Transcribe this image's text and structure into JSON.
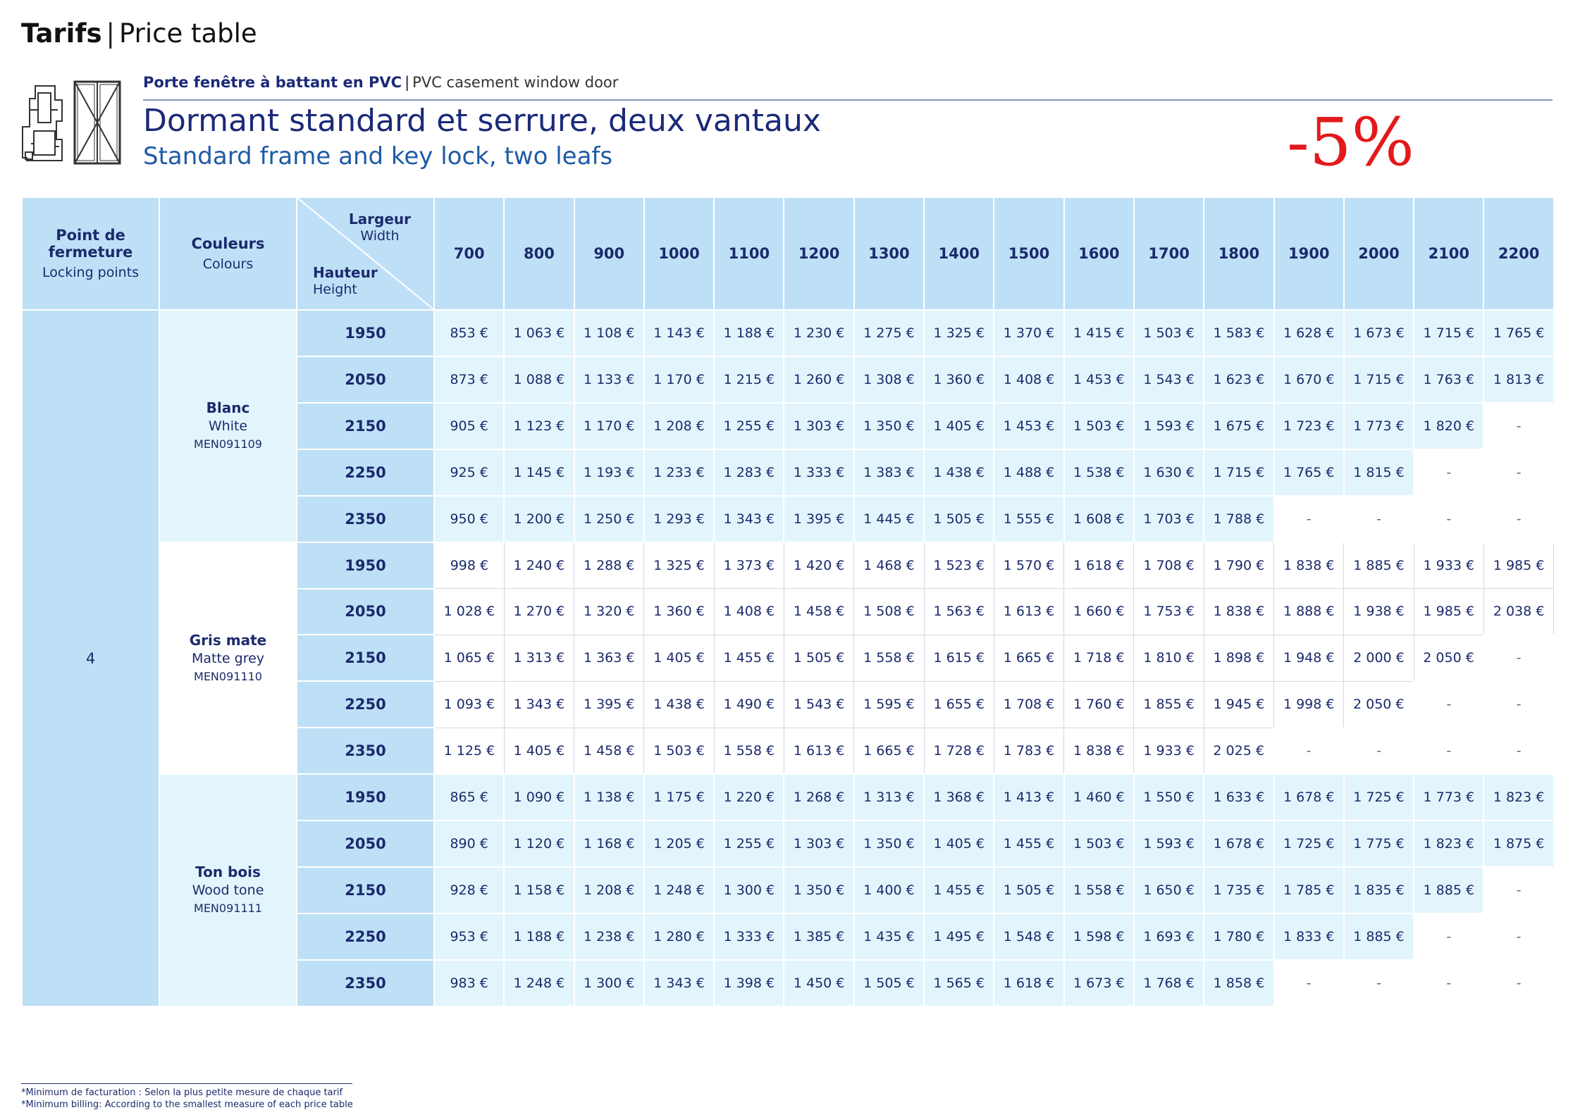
{
  "page": {
    "title_fr": "Tarifs",
    "title_sep": "|",
    "title_en": "Price table"
  },
  "product": {
    "type_fr": "Porte fenêtre à battant en PVC",
    "type_sep": "|",
    "type_en": "PVC casement window door",
    "heading_fr": "Dormant standard et serrure, deux vantaux",
    "heading_en": "Standard frame and key lock, two leafs",
    "discount": "-5%",
    "icon": "window-door-profile-icon"
  },
  "table": {
    "headers": {
      "locking_fr": "Point de fermeture",
      "locking_en": "Locking points",
      "colours_fr": "Couleurs",
      "colours_en": "Colours",
      "width_fr": "Largeur",
      "width_en": "Width",
      "height_fr": "Hauteur",
      "height_en": "Height"
    },
    "widths": [
      "700",
      "800",
      "900",
      "1000",
      "1100",
      "1200",
      "1300",
      "1400",
      "1500",
      "1600",
      "1700",
      "1800",
      "1900",
      "2000",
      "2100",
      "2200"
    ],
    "locking_points": "4",
    "colours": [
      {
        "name_fr": "Blanc",
        "name_en": "White",
        "ref": "MEN091109",
        "rows": [
          {
            "height": "1950",
            "prices": [
              "853 €",
              "1 063 €",
              "1 108 €",
              "1 143 €",
              "1 188 €",
              "1 230 €",
              "1 275 €",
              "1 325 €",
              "1 370 €",
              "1 415 €",
              "1 503 €",
              "1 583 €",
              "1 628 €",
              "1 673 €",
              "1 715 €",
              "1 765 €"
            ]
          },
          {
            "height": "2050",
            "prices": [
              "873 €",
              "1 088 €",
              "1 133 €",
              "1 170 €",
              "1 215 €",
              "1 260 €",
              "1 308 €",
              "1 360 €",
              "1 408 €",
              "1 453 €",
              "1 543 €",
              "1 623 €",
              "1 670 €",
              "1 715 €",
              "1 763 €",
              "1 813 €"
            ]
          },
          {
            "height": "2150",
            "prices": [
              "905 €",
              "1 123 €",
              "1 170 €",
              "1 208 €",
              "1 255 €",
              "1 303 €",
              "1 350 €",
              "1 405 €",
              "1 453 €",
              "1 503 €",
              "1 593 €",
              "1 675 €",
              "1 723 €",
              "1 773 €",
              "1 820 €",
              "-"
            ]
          },
          {
            "height": "2250",
            "prices": [
              "925 €",
              "1 145 €",
              "1 193 €",
              "1 233 €",
              "1 283 €",
              "1 333 €",
              "1 383 €",
              "1 438 €",
              "1 488 €",
              "1 538 €",
              "1 630 €",
              "1 715 €",
              "1 765 €",
              "1 815 €",
              "-",
              "-"
            ]
          },
          {
            "height": "2350",
            "prices": [
              "950 €",
              "1 200 €",
              "1 250 €",
              "1 293 €",
              "1 343 €",
              "1 395 €",
              "1 445 €",
              "1 505 €",
              "1 555 €",
              "1 608 €",
              "1 703 €",
              "1 788 €",
              "-",
              "-",
              "-",
              "-"
            ]
          }
        ]
      },
      {
        "name_fr": "Gris mate",
        "name_en": "Matte grey",
        "ref": "MEN091110",
        "rows": [
          {
            "height": "1950",
            "prices": [
              "998 €",
              "1 240 €",
              "1 288 €",
              "1 325 €",
              "1 373 €",
              "1 420 €",
              "1 468 €",
              "1 523 €",
              "1 570 €",
              "1 618 €",
              "1 708 €",
              "1 790 €",
              "1 838 €",
              "1 885 €",
              "1 933 €",
              "1 985 €"
            ]
          },
          {
            "height": "2050",
            "prices": [
              "1 028 €",
              "1 270 €",
              "1 320 €",
              "1 360 €",
              "1 408 €",
              "1 458 €",
              "1 508 €",
              "1 563 €",
              "1 613 €",
              "1 660 €",
              "1 753 €",
              "1 838 €",
              "1 888 €",
              "1 938 €",
              "1 985 €",
              "2 038 €"
            ]
          },
          {
            "height": "2150",
            "prices": [
              "1 065 €",
              "1 313 €",
              "1 363 €",
              "1 405 €",
              "1 455 €",
              "1 505 €",
              "1 558 €",
              "1 615 €",
              "1 665 €",
              "1 718 €",
              "1 810 €",
              "1 898 €",
              "1 948 €",
              "2 000 €",
              "2 050 €",
              "-"
            ]
          },
          {
            "height": "2250",
            "prices": [
              "1 093 €",
              "1 343 €",
              "1 395 €",
              "1 438 €",
              "1 490 €",
              "1 543 €",
              "1 595 €",
              "1 655 €",
              "1 708 €",
              "1 760 €",
              "1 855 €",
              "1 945 €",
              "1 998 €",
              "2 050 €",
              "-",
              "-"
            ]
          },
          {
            "height": "2350",
            "prices": [
              "1 125 €",
              "1 405 €",
              "1 458 €",
              "1 503 €",
              "1 558 €",
              "1 613 €",
              "1 665 €",
              "1 728 €",
              "1 783 €",
              "1 838 €",
              "1 933 €",
              "2 025 €",
              "-",
              "-",
              "-",
              "-"
            ]
          }
        ]
      },
      {
        "name_fr": "Ton bois",
        "name_en": "Wood tone",
        "ref": "MEN091111",
        "rows": [
          {
            "height": "1950",
            "prices": [
              "865 €",
              "1 090 €",
              "1 138 €",
              "1 175 €",
              "1 220 €",
              "1 268 €",
              "1 313 €",
              "1 368 €",
              "1 413 €",
              "1 460 €",
              "1 550 €",
              "1 633 €",
              "1 678 €",
              "1 725 €",
              "1 773 €",
              "1 823 €"
            ]
          },
          {
            "height": "2050",
            "prices": [
              "890 €",
              "1 120 €",
              "1 168 €",
              "1 205 €",
              "1 255 €",
              "1 303 €",
              "1 350 €",
              "1 405 €",
              "1 455 €",
              "1 503 €",
              "1 593 €",
              "1 678 €",
              "1 725 €",
              "1 775 €",
              "1 823 €",
              "1 875 €"
            ]
          },
          {
            "height": "2150",
            "prices": [
              "928 €",
              "1 158 €",
              "1 208 €",
              "1 248 €",
              "1 300 €",
              "1 350 €",
              "1 400 €",
              "1 455 €",
              "1 505 €",
              "1 558 €",
              "1 650 €",
              "1 735 €",
              "1 785 €",
              "1 835 €",
              "1 885 €",
              "-"
            ]
          },
          {
            "height": "2250",
            "prices": [
              "953 €",
              "1 188 €",
              "1 238 €",
              "1 280 €",
              "1 333 €",
              "1 385 €",
              "1 435 €",
              "1 495 €",
              "1 548 €",
              "1 598 €",
              "1 693 €",
              "1 780 €",
              "1 833 €",
              "1 885 €",
              "-",
              "-"
            ]
          },
          {
            "height": "2350",
            "prices": [
              "983 €",
              "1 248 €",
              "1 300 €",
              "1 343 €",
              "1 398 €",
              "1 450 €",
              "1 505 €",
              "1 565 €",
              "1 618 €",
              "1 673 €",
              "1 768 €",
              "1 858 €",
              "-",
              "-",
              "-",
              "-"
            ]
          }
        ]
      }
    ]
  },
  "footnote": {
    "fr": "*Minimum de facturation : Selon la plus petite mesure de chaque tarif",
    "en": "*Minimum billing: According to the smallest measure of each price table"
  },
  "colors": {
    "navy": "#1b2a78",
    "light_blue": "#bee0f7",
    "pale_blue": "#e3f5fc",
    "discount_red": "#e3191b"
  }
}
